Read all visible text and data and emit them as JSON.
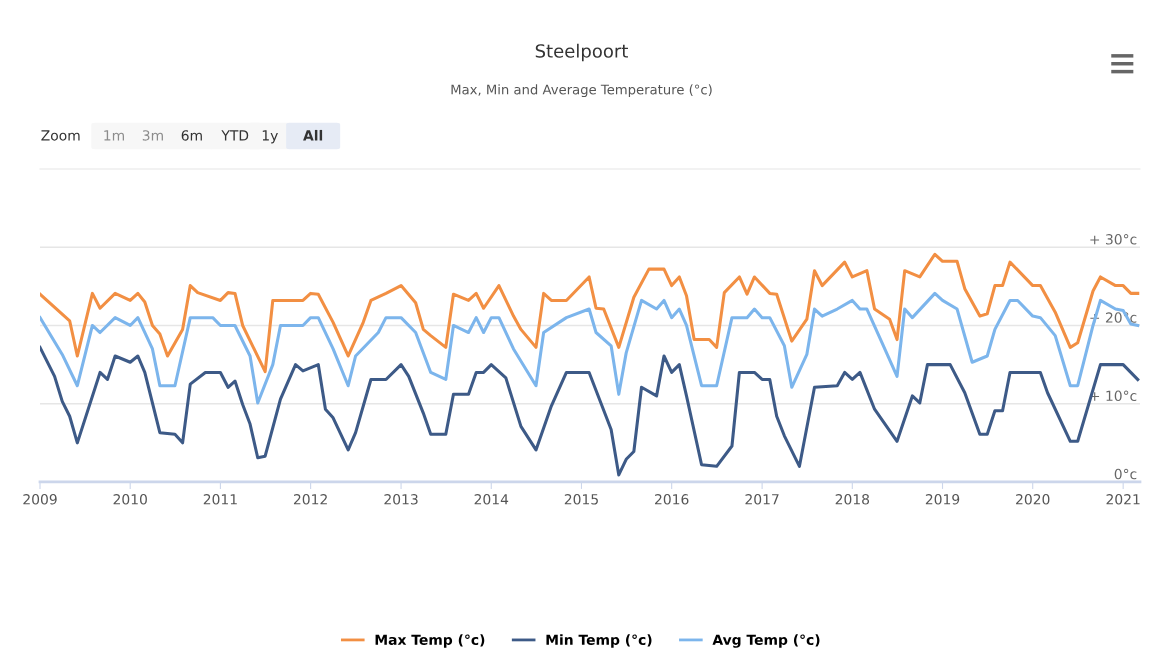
{
  "chart_data": {
    "type": "line",
    "title": "Steelpoort",
    "subtitle": "Max, Min and Average Temperature (°c)",
    "annotations": [
      "Zoom",
      "1m",
      "3m",
      "6m",
      "YTD",
      "1y",
      "All"
    ],
    "xlim": [
      "2009-01-01",
      "2021-03-10"
    ],
    "xticks": [
      "2009",
      "2010",
      "2011",
      "2012",
      "2013",
      "2014",
      "2015",
      "2016",
      "2017",
      "2018",
      "2019",
      "2020",
      "2021"
    ],
    "ylim": [
      0,
      40
    ],
    "yticks": [
      {
        "value": 0,
        "label": "0°c"
      },
      {
        "value": 10,
        "label": "+ 10°c"
      },
      {
        "value": 20,
        "label": "+ 20°c"
      },
      {
        "value": 30,
        "label": "+ 30°c"
      }
    ],
    "grid": "y",
    "legend": "bottom",
    "marker": "none",
    "line_style": "solid",
    "series": [
      {
        "name": "Max Temp (°c)",
        "color": "#f28f43",
        "x": [
          "2009-01",
          "2009-05",
          "2009-06",
          "2009-08",
          "2009-09",
          "2009-11",
          "2010-01",
          "2010-02",
          "2010-03",
          "2010-04",
          "2010-05",
          "2010-06",
          "2010-08",
          "2010-09",
          "2010-10",
          "2011-01",
          "2011-02",
          "2011-03",
          "2011-04",
          "2011-07",
          "2011-08",
          "2011-12",
          "2012-01",
          "2012-02",
          "2012-04",
          "2012-06",
          "2012-08",
          "2012-09",
          "2012-11",
          "2013-01",
          "2013-03",
          "2013-04",
          "2013-05",
          "2013-07",
          "2013-08",
          "2013-10",
          "2013-11",
          "2013-12",
          "2014-02",
          "2014-04",
          "2014-05",
          "2014-07",
          "2014-08",
          "2014-09",
          "2014-11",
          "2015-02",
          "2015-03",
          "2015-04",
          "2015-06",
          "2015-08",
          "2015-10",
          "2015-12",
          "2016-01",
          "2016-02",
          "2016-03",
          "2016-04",
          "2016-06",
          "2016-07",
          "2016-08",
          "2016-10",
          "2016-11",
          "2016-12",
          "2017-02",
          "2017-03",
          "2017-05",
          "2017-07",
          "2017-08",
          "2017-09",
          "2017-12",
          "2018-01",
          "2018-03",
          "2018-04",
          "2018-06",
          "2018-07",
          "2018-08",
          "2018-10",
          "2018-12",
          "2019-01",
          "2019-03",
          "2019-04",
          "2019-06",
          "2019-07",
          "2019-08",
          "2019-09",
          "2019-10",
          "2020-01",
          "2020-02",
          "2020-04",
          "2020-06",
          "2020-07",
          "2020-09",
          "2020-10",
          "2020-12",
          "2021-01",
          "2021-02",
          "2021-03"
        ],
        "values": [
          24.0,
          20.6,
          16.1,
          24.1,
          22.2,
          24.1,
          23.2,
          24.1,
          23.0,
          20.0,
          18.9,
          16.1,
          19.5,
          25.1,
          24.2,
          23.2,
          24.2,
          24.1,
          20.0,
          14.1,
          23.2,
          23.2,
          24.1,
          24.0,
          20.4,
          16.1,
          20.4,
          23.2,
          24.1,
          25.1,
          22.9,
          19.5,
          18.7,
          17.2,
          24.0,
          23.2,
          24.1,
          22.2,
          25.1,
          21.2,
          19.5,
          17.2,
          24.1,
          23.2,
          23.2,
          26.2,
          22.2,
          22.1,
          17.2,
          23.6,
          27.2,
          27.2,
          25.1,
          26.2,
          23.8,
          18.2,
          18.2,
          17.2,
          24.2,
          26.2,
          24.0,
          26.2,
          24.1,
          24.0,
          18.0,
          20.8,
          27.0,
          25.1,
          28.1,
          26.2,
          27.0,
          22.1,
          20.8,
          18.2,
          27.0,
          26.2,
          29.1,
          28.2,
          28.2,
          24.7,
          21.2,
          21.5,
          25.1,
          25.1,
          28.1,
          25.1,
          25.1,
          21.7,
          17.2,
          17.8,
          24.4,
          26.2,
          25.1,
          25.1,
          24.1,
          24.1
        ]
      },
      {
        "name": "Min Temp (°c)",
        "color": "#3d5a87",
        "x": [
          "2009-01",
          "2009-03",
          "2009-04",
          "2009-05",
          "2009-06",
          "2009-09",
          "2009-10",
          "2009-11",
          "2010-01",
          "2010-02",
          "2010-03",
          "2010-05",
          "2010-07",
          "2010-08",
          "2010-09",
          "2010-11",
          "2011-01",
          "2011-02",
          "2011-03",
          "2011-04",
          "2011-05",
          "2011-06",
          "2011-07",
          "2011-09",
          "2011-11",
          "2011-12",
          "2012-02",
          "2012-03",
          "2012-04",
          "2012-06",
          "2012-07",
          "2012-09",
          "2012-11",
          "2013-01",
          "2013-02",
          "2013-04",
          "2013-05",
          "2013-07",
          "2013-08",
          "2013-10",
          "2013-11",
          "2013-12",
          "2014-01",
          "2014-03",
          "2014-05",
          "2014-07",
          "2014-09",
          "2014-11",
          "2015-02",
          "2015-05",
          "2015-06",
          "2015-07",
          "2015-08",
          "2015-09",
          "2015-11",
          "2015-12",
          "2016-01",
          "2016-02",
          "2016-03",
          "2016-05",
          "2016-07",
          "2016-09",
          "2016-10",
          "2016-12",
          "2017-01",
          "2017-02",
          "2017-03",
          "2017-04",
          "2017-06",
          "2017-08",
          "2017-11",
          "2017-12",
          "2018-01",
          "2018-02",
          "2018-04",
          "2018-07",
          "2018-09",
          "2018-10",
          "2018-11",
          "2019-02",
          "2019-04",
          "2019-06",
          "2019-07",
          "2019-08",
          "2019-09",
          "2019-10",
          "2020-02",
          "2020-03",
          "2020-06",
          "2020-07",
          "2020-10",
          "2021-01",
          "2021-03"
        ],
        "values": [
          17.2,
          13.5,
          10.3,
          8.4,
          5.0,
          14.0,
          13.1,
          16.1,
          15.3,
          16.1,
          14.0,
          6.3,
          6.1,
          5.0,
          12.5,
          14.0,
          14.0,
          12.1,
          12.9,
          9.9,
          7.4,
          3.1,
          3.3,
          10.6,
          15.0,
          14.2,
          15.0,
          9.3,
          8.2,
          4.1,
          6.3,
          13.1,
          13.1,
          15.0,
          13.5,
          8.8,
          6.1,
          6.1,
          11.2,
          11.2,
          14.0,
          14.0,
          15.0,
          13.3,
          7.1,
          4.1,
          9.7,
          14.0,
          14.0,
          6.7,
          0.9,
          2.9,
          3.9,
          12.1,
          11.0,
          16.1,
          14.0,
          15.0,
          11.0,
          2.2,
          2.0,
          4.6,
          14.0,
          14.0,
          13.1,
          13.1,
          8.4,
          5.9,
          2.0,
          12.1,
          12.3,
          14.0,
          13.1,
          14.0,
          9.3,
          5.2,
          11.0,
          10.1,
          15.0,
          15.0,
          11.4,
          6.1,
          6.1,
          9.1,
          9.1,
          14.0,
          14.0,
          11.4,
          5.2,
          5.2,
          15.0,
          15.0,
          13.1
        ]
      },
      {
        "name": "Avg Temp (°c)",
        "color": "#7cb5ec",
        "x": [
          "2009-01",
          "2009-04",
          "2009-06",
          "2009-08",
          "2009-09",
          "2009-11",
          "2010-01",
          "2010-02",
          "2010-04",
          "2010-05",
          "2010-07",
          "2010-09",
          "2010-12",
          "2011-01",
          "2011-03",
          "2011-05",
          "2011-06",
          "2011-08",
          "2011-09",
          "2011-12",
          "2012-01",
          "2012-02",
          "2012-04",
          "2012-06",
          "2012-07",
          "2012-10",
          "2012-11",
          "2013-01",
          "2013-03",
          "2013-05",
          "2013-07",
          "2013-08",
          "2013-10",
          "2013-11",
          "2013-12",
          "2014-01",
          "2014-02",
          "2014-04",
          "2014-07",
          "2014-08",
          "2014-11",
          "2015-02",
          "2015-03",
          "2015-05",
          "2015-06",
          "2015-07",
          "2015-09",
          "2015-11",
          "2015-12",
          "2016-01",
          "2016-02",
          "2016-03",
          "2016-05",
          "2016-07",
          "2016-09",
          "2016-11",
          "2016-12",
          "2017-01",
          "2017-02",
          "2017-04",
          "2017-05",
          "2017-07",
          "2017-08",
          "2017-09",
          "2017-11",
          "2018-01",
          "2018-02",
          "2018-03",
          "2018-05",
          "2018-07",
          "2018-08",
          "2018-09",
          "2018-12",
          "2019-01",
          "2019-03",
          "2019-05",
          "2019-07",
          "2019-08",
          "2019-10",
          "2019-11",
          "2020-01",
          "2020-02",
          "2020-04",
          "2020-06",
          "2020-07",
          "2020-09",
          "2020-10",
          "2020-12",
          "2021-01",
          "2021-02",
          "2021-03"
        ],
        "values": [
          21.0,
          16.3,
          12.3,
          20.0,
          19.1,
          21.0,
          20.0,
          21.0,
          17.0,
          12.3,
          12.3,
          21.0,
          21.0,
          20.0,
          20.0,
          16.1,
          10.1,
          15.0,
          20.0,
          20.0,
          21.0,
          21.0,
          17.0,
          12.3,
          16.1,
          19.1,
          21.0,
          21.0,
          19.1,
          14.0,
          13.1,
          20.0,
          19.1,
          21.0,
          19.1,
          21.0,
          21.0,
          17.0,
          12.3,
          19.1,
          21.0,
          22.1,
          19.1,
          17.4,
          11.2,
          16.5,
          23.2,
          22.1,
          23.2,
          21.0,
          22.1,
          20.0,
          12.3,
          12.3,
          21.0,
          21.0,
          22.1,
          21.0,
          21.0,
          17.4,
          12.1,
          16.3,
          22.1,
          21.2,
          22.1,
          23.2,
          22.1,
          22.1,
          17.8,
          13.5,
          22.1,
          21.0,
          24.1,
          23.2,
          22.1,
          15.3,
          16.1,
          19.5,
          23.2,
          23.2,
          21.2,
          21.0,
          18.7,
          12.3,
          12.3,
          20.0,
          23.2,
          22.1,
          21.9,
          20.2,
          20.0
        ]
      }
    ]
  }
}
